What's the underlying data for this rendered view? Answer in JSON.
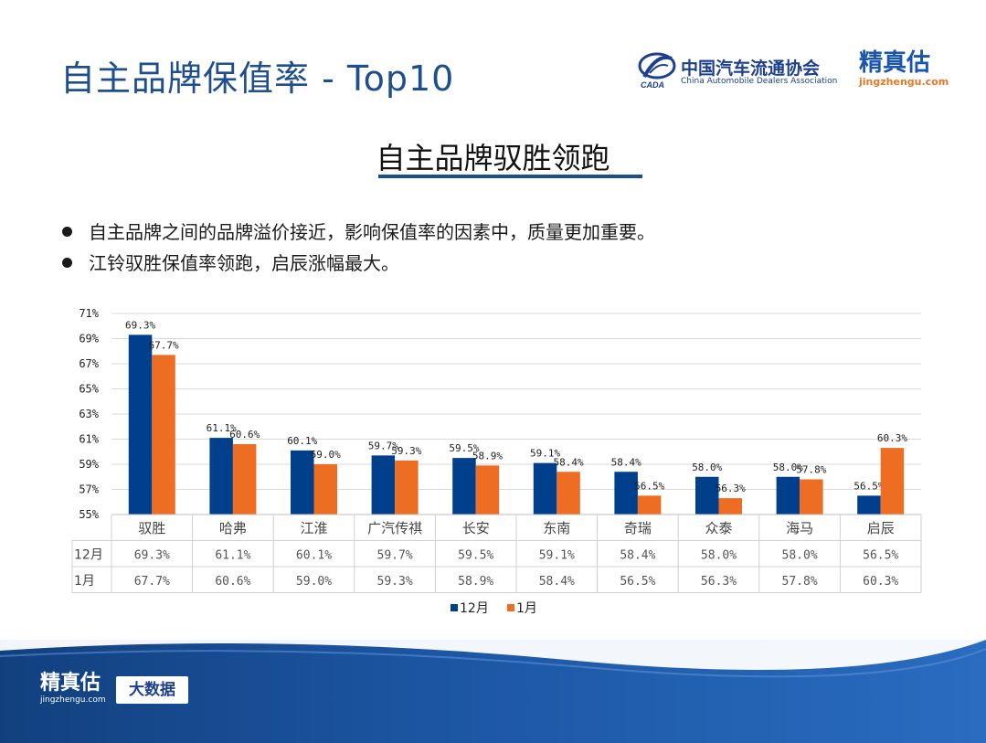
{
  "slide": {
    "title": "自主品牌保值率 - Top10",
    "headline": "自主品牌驭胜领跑",
    "bullets": [
      "自主品牌之间的品牌溢价接近，影响保值率的因素中，质量更加重要。",
      "江铃驭胜保值率领跑，启辰涨幅最大。"
    ]
  },
  "logos": {
    "cada_name": "中国汽车流通协会",
    "cada_english": "China Automobile Dealers Association",
    "cada_mark_text": "CADA",
    "jzg_name": "精真估",
    "jzg_url": "jingzhengu.com"
  },
  "footer": {
    "brand": "精真估",
    "url": "jingzhengu.com",
    "badge": "大数据"
  },
  "colors": {
    "series_dec": "#003f8c",
    "series_jan": "#ed6d22",
    "title_blue": "#1f4e8c"
  },
  "chart_data": {
    "type": "bar",
    "categories": [
      "驭胜",
      "哈弗",
      "江淮",
      "广汽传祺",
      "长安",
      "东南",
      "奇瑞",
      "众泰",
      "海马",
      "启辰"
    ],
    "series": [
      {
        "name": "12月",
        "values": [
          69.3,
          61.1,
          60.1,
          59.7,
          59.5,
          59.1,
          58.4,
          58.0,
          58.0,
          56.5
        ]
      },
      {
        "name": "1月",
        "values": [
          67.7,
          60.6,
          59.0,
          59.3,
          58.9,
          58.4,
          56.5,
          56.3,
          57.8,
          60.3
        ]
      }
    ],
    "y_ticks": [
      "55%",
      "57%",
      "59%",
      "61%",
      "63%",
      "65%",
      "67%",
      "69%",
      "71%"
    ],
    "ylim": [
      55,
      71
    ],
    "value_suffix": "%",
    "grid": true,
    "legend_position": "bottom",
    "data_table": true
  }
}
